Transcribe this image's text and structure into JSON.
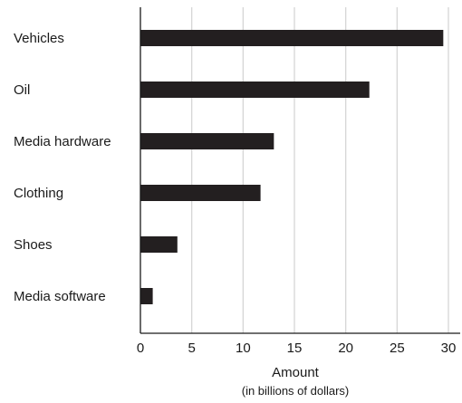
{
  "chart_data": {
    "type": "bar",
    "orientation": "horizontal",
    "categories": [
      "Vehicles",
      "Oil",
      "Media hardware",
      "Clothing",
      "Shoes",
      "Media software"
    ],
    "values": [
      29.5,
      22.3,
      13,
      11.7,
      3.6,
      1.2
    ],
    "xlabel": "Amount",
    "xlabel_sub": "(in billions of dollars)",
    "xlim": [
      0,
      31
    ],
    "xticks": [
      0,
      5,
      10,
      15,
      20,
      25,
      30
    ],
    "grid": "vertical",
    "bar_color": "#231f20"
  }
}
